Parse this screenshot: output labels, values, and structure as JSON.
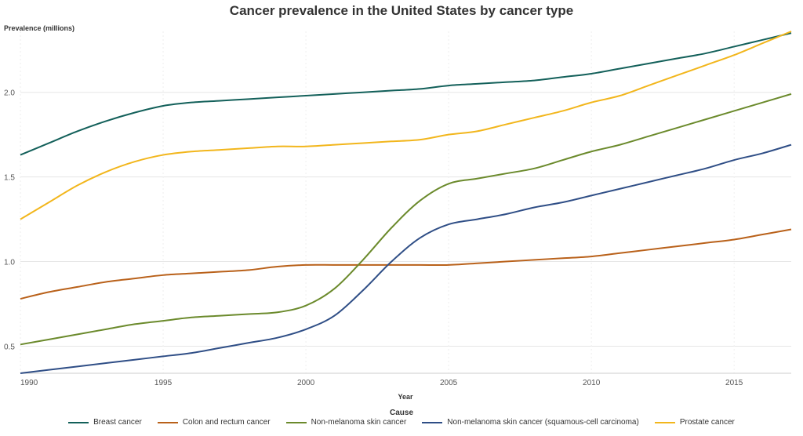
{
  "chart_data": {
    "type": "line",
    "title": "Cancer prevalence in the United States by cancer type",
    "xlabel": "Year",
    "ylabel": "Prevalence (millions)",
    "xlim": [
      1990,
      2017
    ],
    "ylim": [
      0.34,
      2.36
    ],
    "x_ticks": [
      1990,
      1995,
      2000,
      2005,
      2010,
      2015
    ],
    "y_ticks": [
      0.5,
      1.0,
      1.5,
      2.0
    ],
    "y_tick_labels": [
      "0.5",
      "1.0",
      "1.5",
      "2.0"
    ],
    "grid": true,
    "legend_title": "Cause",
    "legend_position": "bottom",
    "x": [
      1990,
      1991,
      1992,
      1993,
      1994,
      1995,
      1996,
      1997,
      1998,
      1999,
      2000,
      2001,
      2002,
      2003,
      2004,
      2005,
      2006,
      2007,
      2008,
      2009,
      2010,
      2011,
      2012,
      2013,
      2014,
      2015,
      2016,
      2017
    ],
    "series": [
      {
        "name": "Breast cancer",
        "color": "#13605a",
        "values": [
          1.63,
          1.7,
          1.77,
          1.83,
          1.88,
          1.92,
          1.94,
          1.95,
          1.96,
          1.97,
          1.98,
          1.99,
          2.0,
          2.01,
          2.02,
          2.04,
          2.05,
          2.06,
          2.07,
          2.09,
          2.11,
          2.14,
          2.17,
          2.2,
          2.23,
          2.27,
          2.31,
          2.35
        ]
      },
      {
        "name": "Colon and rectum cancer",
        "color": "#b9611a",
        "values": [
          0.78,
          0.82,
          0.85,
          0.88,
          0.9,
          0.92,
          0.93,
          0.94,
          0.95,
          0.97,
          0.98,
          0.98,
          0.98,
          0.98,
          0.98,
          0.98,
          0.99,
          1.0,
          1.01,
          1.02,
          1.03,
          1.05,
          1.07,
          1.09,
          1.11,
          1.13,
          1.16,
          1.19
        ]
      },
      {
        "name": "Non-melanoma skin cancer",
        "color": "#6b8a2c",
        "values": [
          0.51,
          0.54,
          0.57,
          0.6,
          0.63,
          0.65,
          0.67,
          0.68,
          0.69,
          0.7,
          0.74,
          0.84,
          1.01,
          1.2,
          1.36,
          1.46,
          1.49,
          1.52,
          1.55,
          1.6,
          1.65,
          1.69,
          1.74,
          1.79,
          1.84,
          1.89,
          1.94,
          1.99
        ]
      },
      {
        "name": "Non-melanoma skin cancer (squamous-cell carcinoma)",
        "color": "#2f4e86",
        "values": [
          0.34,
          0.36,
          0.38,
          0.4,
          0.42,
          0.44,
          0.46,
          0.49,
          0.52,
          0.55,
          0.6,
          0.68,
          0.83,
          1.0,
          1.14,
          1.22,
          1.25,
          1.28,
          1.32,
          1.35,
          1.39,
          1.43,
          1.47,
          1.51,
          1.55,
          1.6,
          1.64,
          1.69
        ]
      },
      {
        "name": "Prostate cancer",
        "color": "#f2b61c",
        "values": [
          1.25,
          1.35,
          1.45,
          1.53,
          1.59,
          1.63,
          1.65,
          1.66,
          1.67,
          1.68,
          1.68,
          1.69,
          1.7,
          1.71,
          1.72,
          1.75,
          1.77,
          1.81,
          1.85,
          1.89,
          1.94,
          1.98,
          2.04,
          2.1,
          2.16,
          2.22,
          2.29,
          2.36
        ]
      }
    ]
  }
}
